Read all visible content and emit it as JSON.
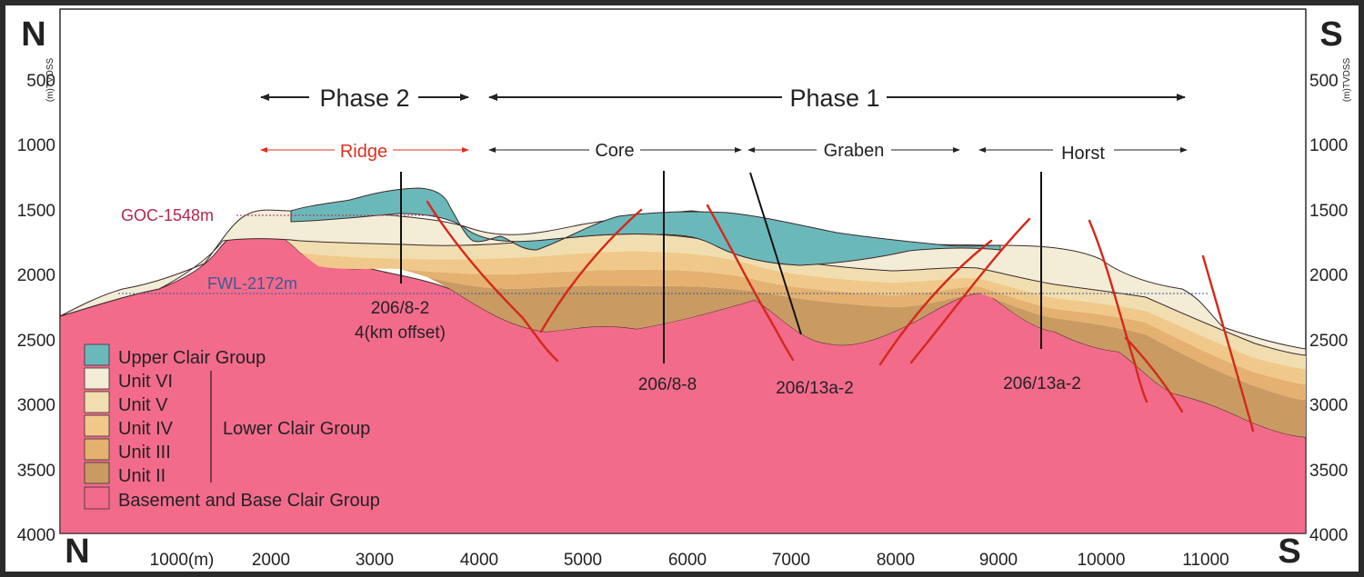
{
  "compass": {
    "north": "N",
    "south": "S"
  },
  "depth_axis": {
    "label": "(m)TVDSS",
    "ticks": [
      "500",
      "1000",
      "1500",
      "2000",
      "2500",
      "3000",
      "3500",
      "4000"
    ]
  },
  "distance_axis": {
    "first_label": "1000(m)",
    "ticks": [
      "2000",
      "3000",
      "4000",
      "5000",
      "6000",
      "7000",
      "8000",
      "9000",
      "10000",
      "11000"
    ]
  },
  "phases": [
    {
      "label": "Phase 2"
    },
    {
      "label": "Phase 1"
    }
  ],
  "zones": [
    {
      "label": "Ridge",
      "color": "#e0301e"
    },
    {
      "label": "Core",
      "color": "#222222"
    },
    {
      "label": "Graben",
      "color": "#222222"
    },
    {
      "label": "Horst",
      "color": "#222222"
    }
  ],
  "contacts": {
    "goc": {
      "label": "GOC-1548m",
      "color": "#b0284a"
    },
    "fwl": {
      "label": "FWL-2172m",
      "color": "#3a5a96"
    }
  },
  "wells": [
    {
      "label_line1": "206/8-2",
      "label_line2": "4(km offset)"
    },
    {
      "label_line1": "206/8-8"
    },
    {
      "label_line1": "206/13a-2"
    },
    {
      "label_line1": "206/13a-2"
    }
  ],
  "legend": {
    "items": [
      {
        "label": "Upper Clair Group",
        "color": "#6bb8bb"
      },
      {
        "label": "Unit VI",
        "color": "#f3ecd6"
      },
      {
        "label": "Unit V",
        "color": "#f1deb0"
      },
      {
        "label": "Unit IV",
        "color": "#f0c98a"
      },
      {
        "label": "Unit III",
        "color": "#e4b170"
      },
      {
        "label": "Unit II",
        "color": "#c99a62"
      },
      {
        "label": "Basement and Base Clair Group",
        "color": "#f36b8b"
      }
    ],
    "group_label": "Lower Clair Group"
  },
  "colors": {
    "fault": "#d6281a",
    "well": "#111111",
    "frame": "#2b2b2b"
  }
}
